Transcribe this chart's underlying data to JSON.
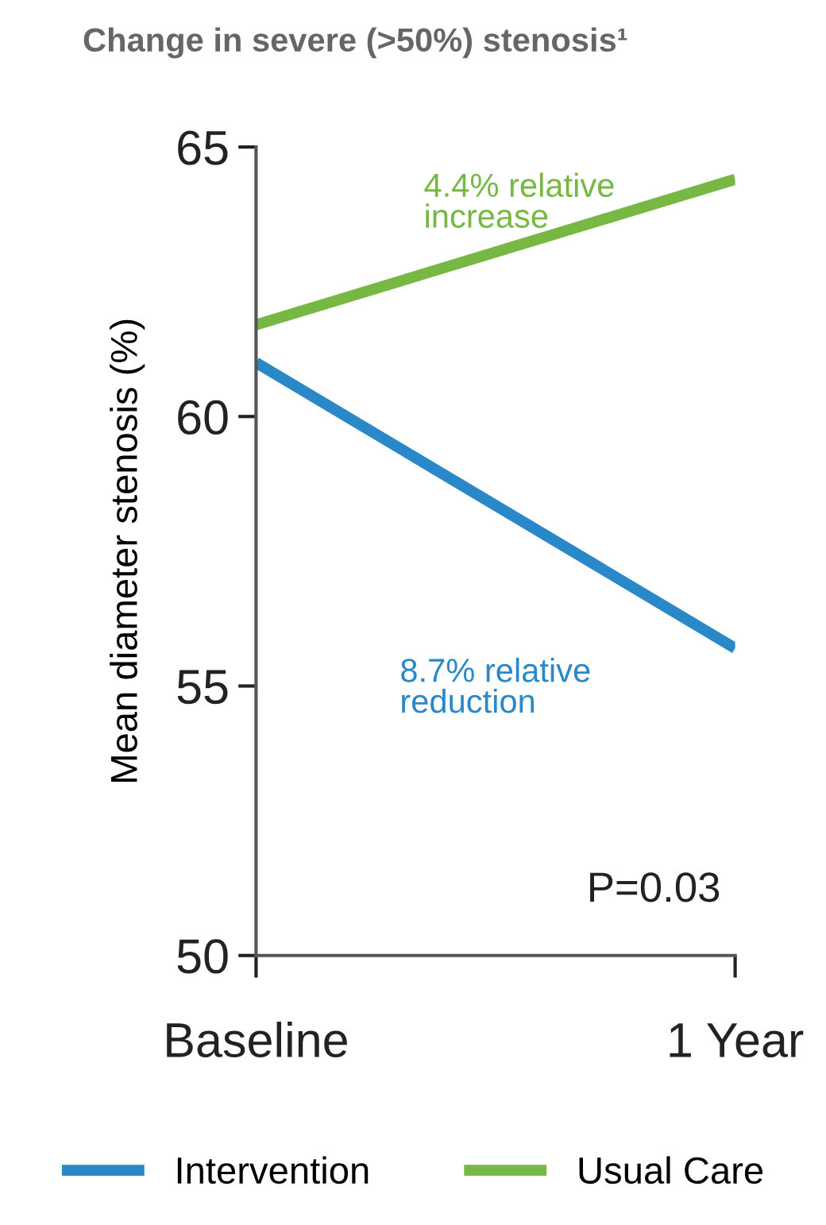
{
  "chart_data": {
    "type": "line",
    "title": "Change in severe (>50%) stenosis¹",
    "ylabel": "Mean diameter stenosis (%)",
    "categories": [
      "Baseline",
      "1 Year"
    ],
    "series": [
      {
        "name": "Intervention",
        "color": "#2a88c8",
        "values": [
          61.0,
          55.7
        ]
      },
      {
        "name": "Usual Care",
        "color": "#76b843",
        "values": [
          61.7,
          64.4
        ]
      }
    ],
    "ylim": [
      50,
      65
    ],
    "yticks": [
      50,
      55,
      60,
      65
    ],
    "grid": false,
    "legend": "bottom",
    "marker": "none",
    "line_style": "solid",
    "annotations": [
      "8.7% relative\nreduction",
      "4.4% relative\nincrease",
      "P=0.03"
    ]
  }
}
